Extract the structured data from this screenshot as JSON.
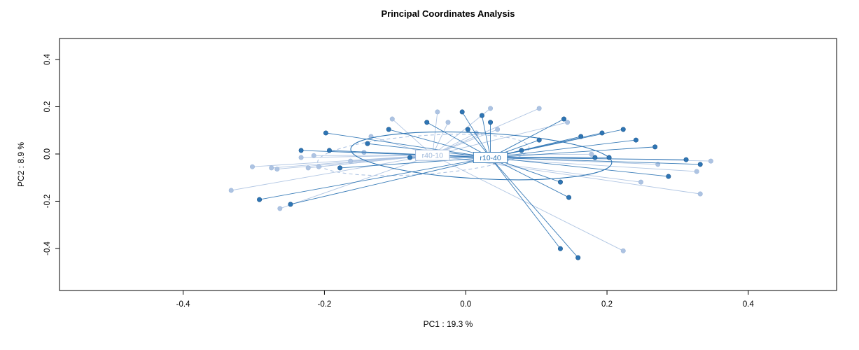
{
  "chart_data": {
    "type": "scatter",
    "title": "Principal Coordinates Analysis",
    "xlabel": "PC1 :  19.3 %",
    "ylabel": "PC2 :  8.9 %",
    "xlim": [
      -0.575,
      0.525
    ],
    "ylim": [
      -0.578,
      0.489
    ],
    "xticks": [
      -0.4,
      -0.2,
      0.0,
      0.2,
      0.4
    ],
    "yticks": [
      -0.4,
      -0.2,
      0.0,
      0.2,
      0.4
    ],
    "grid": false,
    "legend_position": "none",
    "axis_color": "#000000",
    "groups": [
      {
        "name": "r40-10",
        "color": "#adc3e2",
        "stroke": "#9db7da",
        "label_text_color": "#9db7da",
        "centroid": [
          -0.047,
          -0.005
        ],
        "ellipse": {
          "cx": -0.06,
          "cy": -0.004,
          "rx": 0.15,
          "ry": 0.082,
          "angle": -4,
          "dashed": true
        },
        "points": [
          [
            -0.332,
            -0.154
          ],
          [
            -0.302,
            -0.054
          ],
          [
            -0.275,
            -0.059
          ],
          [
            -0.267,
            -0.064
          ],
          [
            -0.263,
            -0.231
          ],
          [
            -0.233,
            -0.015
          ],
          [
            -0.223,
            -0.059
          ],
          [
            -0.215,
            -0.007
          ],
          [
            -0.208,
            -0.054
          ],
          [
            -0.163,
            -0.03
          ],
          [
            -0.144,
            0.007
          ],
          [
            -0.134,
            0.074
          ],
          [
            -0.104,
            0.148
          ],
          [
            -0.04,
            0.178
          ],
          [
            -0.025,
            0.134
          ],
          [
            0.015,
            0.089
          ],
          [
            0.035,
            0.193
          ],
          [
            0.045,
            0.104
          ],
          [
            0.104,
            0.193
          ],
          [
            0.144,
            0.134
          ],
          [
            0.178,
            -0.001
          ],
          [
            0.248,
            -0.119
          ],
          [
            0.272,
            -0.044
          ],
          [
            0.327,
            -0.074
          ],
          [
            0.332,
            -0.169
          ],
          [
            0.223,
            -0.41
          ],
          [
            0.347,
            -0.03
          ]
        ]
      },
      {
        "name": "r10-40",
        "color": "#2e75b4",
        "stroke": "#20598f",
        "label_text_color": "#2e75b4",
        "centroid": [
          0.035,
          -0.015
        ],
        "ellipse": {
          "cx": 0.022,
          "cy": -0.008,
          "rx": 0.185,
          "ry": 0.097,
          "angle": 3,
          "dashed": false
        },
        "points": [
          [
            -0.198,
            0.089
          ],
          [
            -0.193,
            0.015
          ],
          [
            -0.233,
            0.015
          ],
          [
            -0.178,
            -0.059
          ],
          [
            -0.292,
            -0.193
          ],
          [
            -0.248,
            -0.213
          ],
          [
            -0.139,
            0.044
          ],
          [
            -0.109,
            0.104
          ],
          [
            -0.079,
            -0.015
          ],
          [
            -0.055,
            0.134
          ],
          [
            -0.005,
            0.178
          ],
          [
            0.003,
            0.104
          ],
          [
            0.023,
            0.163
          ],
          [
            0.035,
            0.134
          ],
          [
            0.04,
            -0.03
          ],
          [
            0.079,
            0.015
          ],
          [
            0.104,
            0.059
          ],
          [
            0.139,
            0.148
          ],
          [
            0.163,
            0.074
          ],
          [
            0.183,
            -0.015
          ],
          [
            0.193,
            0.089
          ],
          [
            0.223,
            0.104
          ],
          [
            0.241,
            0.059
          ],
          [
            0.203,
            -0.015
          ],
          [
            0.134,
            -0.119
          ],
          [
            0.146,
            -0.184
          ],
          [
            0.134,
            -0.401
          ],
          [
            0.159,
            -0.439
          ],
          [
            0.312,
            -0.024
          ],
          [
            0.332,
            -0.044
          ],
          [
            0.268,
            0.03
          ],
          [
            0.287,
            -0.095
          ]
        ]
      }
    ]
  }
}
